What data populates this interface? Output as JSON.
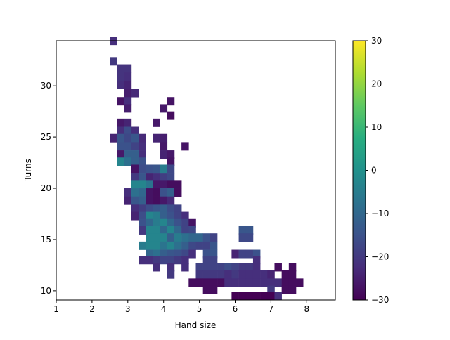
{
  "chart_data": {
    "type": "heatmap",
    "title": "",
    "xlabel": "Hand size",
    "ylabel": "Turns",
    "xlim": [
      1,
      8.8
    ],
    "ylim": [
      9.1,
      34.4
    ],
    "xticks": [
      "1",
      "2",
      "3",
      "4",
      "5",
      "6",
      "7",
      "8"
    ],
    "yticks": [
      "10",
      "15",
      "20",
      "25",
      "30"
    ],
    "bin_width_x": 0.2,
    "bin_height_y": 0.8,
    "colorbar": {
      "min": -30,
      "max": 30,
      "ticks": [
        "−30",
        "−20",
        "−10",
        "0",
        "10",
        "20",
        "30"
      ],
      "colormap": "viridis"
    },
    "grid": false,
    "cells": [
      {
        "x": 2.5,
        "y": 34.0,
        "value": -22
      },
      {
        "x": 2.5,
        "y": 32.0,
        "value": -20
      },
      {
        "x": 2.7,
        "y": 31.3,
        "value": -21
      },
      {
        "x": 2.9,
        "y": 31.3,
        "value": -21
      },
      {
        "x": 2.7,
        "y": 30.5,
        "value": -21
      },
      {
        "x": 2.9,
        "y": 30.5,
        "value": -22
      },
      {
        "x": 2.7,
        "y": 29.7,
        "value": -22
      },
      {
        "x": 2.9,
        "y": 29.7,
        "value": -24
      },
      {
        "x": 2.9,
        "y": 28.9,
        "value": -25
      },
      {
        "x": 3.1,
        "y": 28.9,
        "value": -23
      },
      {
        "x": 2.7,
        "y": 28.1,
        "value": -27
      },
      {
        "x": 2.9,
        "y": 28.1,
        "value": -22
      },
      {
        "x": 4.1,
        "y": 28.1,
        "value": -27
      },
      {
        "x": 2.9,
        "y": 27.4,
        "value": -25
      },
      {
        "x": 3.9,
        "y": 27.4,
        "value": -26
      },
      {
        "x": 4.1,
        "y": 26.7,
        "value": -28
      },
      {
        "x": 2.7,
        "y": 26.0,
        "value": -26
      },
      {
        "x": 2.9,
        "y": 26.0,
        "value": -24
      },
      {
        "x": 3.7,
        "y": 26.0,
        "value": -26
      },
      {
        "x": 2.7,
        "y": 25.2,
        "value": -22
      },
      {
        "x": 2.9,
        "y": 25.2,
        "value": -16
      },
      {
        "x": 3.1,
        "y": 25.2,
        "value": -22
      },
      {
        "x": 2.5,
        "y": 24.5,
        "value": -24
      },
      {
        "x": 2.7,
        "y": 24.5,
        "value": -14
      },
      {
        "x": 2.9,
        "y": 24.5,
        "value": -17
      },
      {
        "x": 3.1,
        "y": 24.5,
        "value": -14
      },
      {
        "x": 3.3,
        "y": 24.5,
        "value": -23
      },
      {
        "x": 3.7,
        "y": 24.5,
        "value": -24
      },
      {
        "x": 3.9,
        "y": 24.5,
        "value": -25
      },
      {
        "x": 2.7,
        "y": 23.7,
        "value": -15
      },
      {
        "x": 2.9,
        "y": 23.7,
        "value": -15
      },
      {
        "x": 3.1,
        "y": 23.7,
        "value": -18
      },
      {
        "x": 3.3,
        "y": 23.7,
        "value": -22
      },
      {
        "x": 3.9,
        "y": 23.7,
        "value": -26
      },
      {
        "x": 4.5,
        "y": 23.7,
        "value": -27
      },
      {
        "x": 2.7,
        "y": 22.9,
        "value": -26
      },
      {
        "x": 2.9,
        "y": 22.9,
        "value": -12
      },
      {
        "x": 3.1,
        "y": 22.9,
        "value": -12
      },
      {
        "x": 3.3,
        "y": 22.9,
        "value": -22
      },
      {
        "x": 3.9,
        "y": 22.9,
        "value": -24
      },
      {
        "x": 4.1,
        "y": 22.9,
        "value": -26
      },
      {
        "x": 2.7,
        "y": 22.2,
        "value": -3
      },
      {
        "x": 2.9,
        "y": 22.2,
        "value": -8
      },
      {
        "x": 3.1,
        "y": 22.2,
        "value": -12
      },
      {
        "x": 3.3,
        "y": 22.2,
        "value": -15
      },
      {
        "x": 4.1,
        "y": 22.2,
        "value": -27
      },
      {
        "x": 3.1,
        "y": 21.5,
        "value": -27
      },
      {
        "x": 3.3,
        "y": 21.5,
        "value": -16
      },
      {
        "x": 3.5,
        "y": 21.5,
        "value": -15
      },
      {
        "x": 3.7,
        "y": 21.5,
        "value": -14
      },
      {
        "x": 3.9,
        "y": 21.5,
        "value": -5
      },
      {
        "x": 4.1,
        "y": 21.5,
        "value": -17
      },
      {
        "x": 3.1,
        "y": 20.7,
        "value": -20
      },
      {
        "x": 3.3,
        "y": 20.7,
        "value": -14
      },
      {
        "x": 3.5,
        "y": 20.7,
        "value": -24
      },
      {
        "x": 3.7,
        "y": 20.7,
        "value": -22
      },
      {
        "x": 3.9,
        "y": 20.7,
        "value": -19
      },
      {
        "x": 4.1,
        "y": 20.7,
        "value": -17
      },
      {
        "x": 3.1,
        "y": 20.0,
        "value": -3
      },
      {
        "x": 3.3,
        "y": 20.0,
        "value": -3
      },
      {
        "x": 3.5,
        "y": 20.0,
        "value": -7
      },
      {
        "x": 3.7,
        "y": 20.0,
        "value": -26
      },
      {
        "x": 3.9,
        "y": 20.0,
        "value": -26
      },
      {
        "x": 4.1,
        "y": 20.0,
        "value": -28
      },
      {
        "x": 4.3,
        "y": 20.0,
        "value": -28
      },
      {
        "x": 2.9,
        "y": 19.2,
        "value": -22
      },
      {
        "x": 3.1,
        "y": 19.2,
        "value": -8
      },
      {
        "x": 3.3,
        "y": 19.2,
        "value": -10
      },
      {
        "x": 3.5,
        "y": 19.2,
        "value": -27
      },
      {
        "x": 3.7,
        "y": 19.2,
        "value": -28
      },
      {
        "x": 3.9,
        "y": 19.2,
        "value": -15
      },
      {
        "x": 4.1,
        "y": 19.2,
        "value": -12
      },
      {
        "x": 4.3,
        "y": 19.2,
        "value": -28
      },
      {
        "x": 2.9,
        "y": 18.4,
        "value": -24
      },
      {
        "x": 3.1,
        "y": 18.4,
        "value": -14
      },
      {
        "x": 3.3,
        "y": 18.4,
        "value": -12
      },
      {
        "x": 3.5,
        "y": 18.4,
        "value": -27
      },
      {
        "x": 3.7,
        "y": 18.4,
        "value": -28
      },
      {
        "x": 3.9,
        "y": 18.4,
        "value": -26
      },
      {
        "x": 4.1,
        "y": 18.4,
        "value": -23
      },
      {
        "x": 3.1,
        "y": 17.6,
        "value": -22
      },
      {
        "x": 3.3,
        "y": 17.6,
        "value": -19
      },
      {
        "x": 3.5,
        "y": 17.6,
        "value": -16
      },
      {
        "x": 3.7,
        "y": 17.6,
        "value": -14
      },
      {
        "x": 3.9,
        "y": 17.6,
        "value": -12
      },
      {
        "x": 4.1,
        "y": 17.6,
        "value": -16
      },
      {
        "x": 4.3,
        "y": 17.6,
        "value": -18
      },
      {
        "x": 3.1,
        "y": 16.9,
        "value": -24
      },
      {
        "x": 3.3,
        "y": 16.9,
        "value": -16
      },
      {
        "x": 3.5,
        "y": 16.9,
        "value": -3
      },
      {
        "x": 3.7,
        "y": 16.9,
        "value": -5
      },
      {
        "x": 3.9,
        "y": 16.9,
        "value": -12
      },
      {
        "x": 4.1,
        "y": 16.9,
        "value": -15
      },
      {
        "x": 4.3,
        "y": 16.9,
        "value": -18
      },
      {
        "x": 4.5,
        "y": 16.9,
        "value": -22
      },
      {
        "x": 3.3,
        "y": 16.2,
        "value": -15
      },
      {
        "x": 3.5,
        "y": 16.2,
        "value": -10
      },
      {
        "x": 3.7,
        "y": 16.2,
        "value": -5
      },
      {
        "x": 3.9,
        "y": 16.2,
        "value": -3
      },
      {
        "x": 4.1,
        "y": 16.2,
        "value": -10
      },
      {
        "x": 4.3,
        "y": 16.2,
        "value": -15
      },
      {
        "x": 4.5,
        "y": 16.2,
        "value": -18
      },
      {
        "x": 4.7,
        "y": 16.2,
        "value": -27
      },
      {
        "x": 3.3,
        "y": 15.5,
        "value": -20
      },
      {
        "x": 3.5,
        "y": 15.5,
        "value": -3
      },
      {
        "x": 3.7,
        "y": 15.5,
        "value": -3
      },
      {
        "x": 3.9,
        "y": 15.5,
        "value": -10
      },
      {
        "x": 4.1,
        "y": 15.5,
        "value": -3
      },
      {
        "x": 4.3,
        "y": 15.5,
        "value": -10
      },
      {
        "x": 4.5,
        "y": 15.5,
        "value": -18
      },
      {
        "x": 4.7,
        "y": 15.5,
        "value": -17
      },
      {
        "x": 6.1,
        "y": 15.5,
        "value": -14
      },
      {
        "x": 6.3,
        "y": 15.5,
        "value": -14
      },
      {
        "x": 3.5,
        "y": 14.8,
        "value": -3
      },
      {
        "x": 3.7,
        "y": 14.8,
        "value": -3
      },
      {
        "x": 3.9,
        "y": 14.8,
        "value": -3
      },
      {
        "x": 4.1,
        "y": 14.8,
        "value": -12
      },
      {
        "x": 4.3,
        "y": 14.8,
        "value": -5
      },
      {
        "x": 4.5,
        "y": 14.8,
        "value": -8
      },
      {
        "x": 4.7,
        "y": 14.8,
        "value": -10
      },
      {
        "x": 4.9,
        "y": 14.8,
        "value": -10
      },
      {
        "x": 5.1,
        "y": 14.8,
        "value": -15
      },
      {
        "x": 5.3,
        "y": 14.8,
        "value": -18
      },
      {
        "x": 6.1,
        "y": 14.8,
        "value": -17
      },
      {
        "x": 6.3,
        "y": 14.8,
        "value": -17
      },
      {
        "x": 3.3,
        "y": 14.0,
        "value": -5
      },
      {
        "x": 3.5,
        "y": 14.0,
        "value": -3
      },
      {
        "x": 3.7,
        "y": 14.0,
        "value": -3
      },
      {
        "x": 3.9,
        "y": 14.0,
        "value": -7
      },
      {
        "x": 4.1,
        "y": 14.0,
        "value": -3
      },
      {
        "x": 4.3,
        "y": 14.0,
        "value": -8
      },
      {
        "x": 4.5,
        "y": 14.0,
        "value": -12
      },
      {
        "x": 4.7,
        "y": 14.0,
        "value": -17
      },
      {
        "x": 4.9,
        "y": 14.0,
        "value": -18
      },
      {
        "x": 5.1,
        "y": 14.0,
        "value": -18
      },
      {
        "x": 5.3,
        "y": 14.0,
        "value": -14
      },
      {
        "x": 3.5,
        "y": 13.2,
        "value": -10
      },
      {
        "x": 3.7,
        "y": 13.2,
        "value": -8
      },
      {
        "x": 3.9,
        "y": 13.2,
        "value": -12
      },
      {
        "x": 4.1,
        "y": 13.2,
        "value": -14
      },
      {
        "x": 4.3,
        "y": 13.2,
        "value": -15
      },
      {
        "x": 4.5,
        "y": 13.2,
        "value": -17
      },
      {
        "x": 4.7,
        "y": 13.2,
        "value": -22
      },
      {
        "x": 5.1,
        "y": 13.2,
        "value": -15
      },
      {
        "x": 5.3,
        "y": 13.2,
        "value": -14
      },
      {
        "x": 5.9,
        "y": 13.2,
        "value": -24
      },
      {
        "x": 6.1,
        "y": 13.2,
        "value": -18
      },
      {
        "x": 6.3,
        "y": 13.2,
        "value": -18
      },
      {
        "x": 6.5,
        "y": 13.2,
        "value": -15
      },
      {
        "x": 3.3,
        "y": 12.6,
        "value": -22
      },
      {
        "x": 3.5,
        "y": 12.6,
        "value": -22
      },
      {
        "x": 3.7,
        "y": 12.6,
        "value": -20
      },
      {
        "x": 3.9,
        "y": 12.6,
        "value": -18
      },
      {
        "x": 4.1,
        "y": 12.6,
        "value": -18
      },
      {
        "x": 4.3,
        "y": 12.6,
        "value": -20
      },
      {
        "x": 4.5,
        "y": 12.6,
        "value": -22
      },
      {
        "x": 5.1,
        "y": 12.6,
        "value": -18
      },
      {
        "x": 5.3,
        "y": 12.6,
        "value": -18
      },
      {
        "x": 6.5,
        "y": 12.6,
        "value": -22
      },
      {
        "x": 3.7,
        "y": 11.9,
        "value": -22
      },
      {
        "x": 4.1,
        "y": 11.9,
        "value": -22
      },
      {
        "x": 4.5,
        "y": 11.9,
        "value": -22
      },
      {
        "x": 4.9,
        "y": 11.9,
        "value": -18
      },
      {
        "x": 5.1,
        "y": 11.9,
        "value": -18
      },
      {
        "x": 5.3,
        "y": 11.9,
        "value": -18
      },
      {
        "x": 5.5,
        "y": 11.9,
        "value": -18
      },
      {
        "x": 5.7,
        "y": 11.9,
        "value": -16
      },
      {
        "x": 5.9,
        "y": 11.9,
        "value": -18
      },
      {
        "x": 6.1,
        "y": 11.9,
        "value": -20
      },
      {
        "x": 6.3,
        "y": 11.9,
        "value": -20
      },
      {
        "x": 6.5,
        "y": 11.9,
        "value": -22
      },
      {
        "x": 7.1,
        "y": 11.9,
        "value": -28
      },
      {
        "x": 7.5,
        "y": 11.9,
        "value": -28
      },
      {
        "x": 4.1,
        "y": 11.2,
        "value": -20
      },
      {
        "x": 4.9,
        "y": 11.2,
        "value": -20
      },
      {
        "x": 5.1,
        "y": 11.2,
        "value": -20
      },
      {
        "x": 5.3,
        "y": 11.2,
        "value": -20
      },
      {
        "x": 5.5,
        "y": 11.2,
        "value": -20
      },
      {
        "x": 5.7,
        "y": 11.2,
        "value": -22
      },
      {
        "x": 5.9,
        "y": 11.2,
        "value": -20
      },
      {
        "x": 6.1,
        "y": 11.2,
        "value": -22
      },
      {
        "x": 6.3,
        "y": 11.2,
        "value": -22
      },
      {
        "x": 6.5,
        "y": 11.2,
        "value": -22
      },
      {
        "x": 6.7,
        "y": 11.2,
        "value": -22
      },
      {
        "x": 6.9,
        "y": 11.2,
        "value": -24
      },
      {
        "x": 7.3,
        "y": 11.2,
        "value": -28
      },
      {
        "x": 7.5,
        "y": 11.2,
        "value": -28
      },
      {
        "x": 4.7,
        "y": 10.4,
        "value": -28
      },
      {
        "x": 4.9,
        "y": 10.4,
        "value": -28
      },
      {
        "x": 5.1,
        "y": 10.4,
        "value": -28
      },
      {
        "x": 5.3,
        "y": 10.4,
        "value": -28
      },
      {
        "x": 5.5,
        "y": 10.4,
        "value": -28
      },
      {
        "x": 5.7,
        "y": 10.4,
        "value": -22
      },
      {
        "x": 5.9,
        "y": 10.4,
        "value": -22
      },
      {
        "x": 6.1,
        "y": 10.4,
        "value": -22
      },
      {
        "x": 6.3,
        "y": 10.4,
        "value": -22
      },
      {
        "x": 6.5,
        "y": 10.4,
        "value": -22
      },
      {
        "x": 6.7,
        "y": 10.4,
        "value": -22
      },
      {
        "x": 6.9,
        "y": 10.4,
        "value": -22
      },
      {
        "x": 7.1,
        "y": 10.4,
        "value": -22
      },
      {
        "x": 7.3,
        "y": 10.4,
        "value": -28
      },
      {
        "x": 7.5,
        "y": 10.4,
        "value": -28
      },
      {
        "x": 7.7,
        "y": 10.4,
        "value": -28
      },
      {
        "x": 5.1,
        "y": 9.7,
        "value": -28
      },
      {
        "x": 5.3,
        "y": 9.7,
        "value": -28
      },
      {
        "x": 6.9,
        "y": 9.7,
        "value": -20
      },
      {
        "x": 7.3,
        "y": 9.7,
        "value": -28
      },
      {
        "x": 7.5,
        "y": 9.7,
        "value": -28
      },
      {
        "x": 5.9,
        "y": 9.1,
        "value": -30
      },
      {
        "x": 6.1,
        "y": 9.1,
        "value": -30
      },
      {
        "x": 6.3,
        "y": 9.1,
        "value": -30
      },
      {
        "x": 6.5,
        "y": 9.1,
        "value": -30
      },
      {
        "x": 6.7,
        "y": 9.1,
        "value": -30
      },
      {
        "x": 6.9,
        "y": 9.1,
        "value": -30
      },
      {
        "x": 7.1,
        "y": 9.1,
        "value": -22
      }
    ]
  }
}
